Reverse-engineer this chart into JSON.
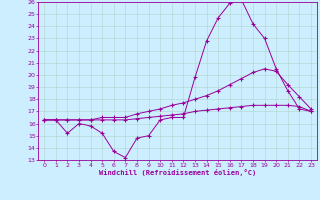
{
  "xlabel": "Windchill (Refroidissement éolien,°C)",
  "bg_color": "#cceeff",
  "line_color": "#990099",
  "grid_color": "#b0d4cc",
  "ylim": [
    13,
    26
  ],
  "xlim": [
    -0.5,
    23.5
  ],
  "yticks": [
    13,
    14,
    15,
    16,
    17,
    18,
    19,
    20,
    21,
    22,
    23,
    24,
    25,
    26
  ],
  "xticks": [
    0,
    1,
    2,
    3,
    4,
    5,
    6,
    7,
    8,
    9,
    10,
    11,
    12,
    13,
    14,
    15,
    16,
    17,
    18,
    19,
    20,
    21,
    22,
    23
  ],
  "line1_x": [
    0,
    1,
    2,
    3,
    4,
    5,
    6,
    7,
    8,
    9,
    10,
    11,
    12,
    13,
    14,
    15,
    16,
    17,
    18,
    19,
    20,
    21,
    22,
    23
  ],
  "line1_y": [
    16.3,
    16.3,
    15.2,
    16.0,
    15.8,
    15.2,
    13.7,
    13.2,
    14.8,
    15.0,
    16.3,
    16.5,
    16.5,
    19.8,
    22.8,
    24.7,
    25.9,
    26.2,
    24.2,
    23.0,
    20.5,
    18.7,
    17.2,
    17.0
  ],
  "line2_x": [
    0,
    1,
    2,
    3,
    4,
    5,
    6,
    7,
    8,
    9,
    10,
    11,
    12,
    13,
    14,
    15,
    16,
    17,
    18,
    19,
    20,
    21,
    22,
    23
  ],
  "line2_y": [
    16.3,
    16.3,
    16.3,
    16.3,
    16.3,
    16.5,
    16.5,
    16.5,
    16.8,
    17.0,
    17.2,
    17.5,
    17.7,
    18.0,
    18.3,
    18.7,
    19.2,
    19.7,
    20.2,
    20.5,
    20.3,
    19.2,
    18.2,
    17.2
  ],
  "line3_x": [
    0,
    1,
    2,
    3,
    4,
    5,
    6,
    7,
    8,
    9,
    10,
    11,
    12,
    13,
    14,
    15,
    16,
    17,
    18,
    19,
    20,
    21,
    22,
    23
  ],
  "line3_y": [
    16.3,
    16.3,
    16.3,
    16.3,
    16.3,
    16.3,
    16.3,
    16.3,
    16.4,
    16.5,
    16.6,
    16.7,
    16.8,
    17.0,
    17.1,
    17.2,
    17.3,
    17.4,
    17.5,
    17.5,
    17.5,
    17.5,
    17.4,
    17.0
  ]
}
